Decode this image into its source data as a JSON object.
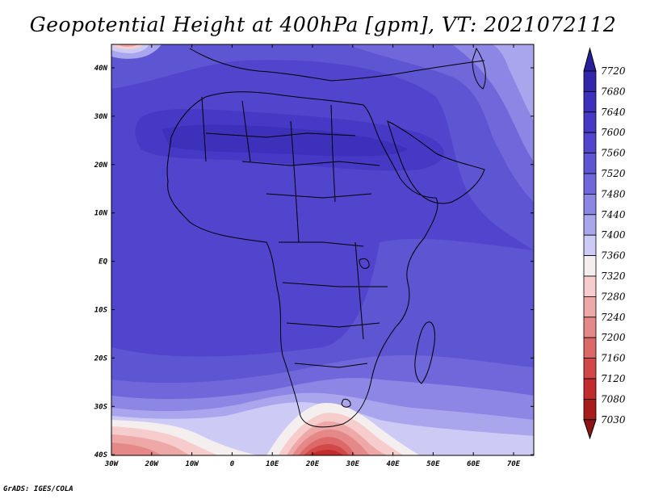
{
  "title": "Geopotential Height at 400hPa [gpm], VT: 2021072112",
  "credit": "GrADS: IGES/COLA",
  "lat_labels": [
    "40N",
    "30N",
    "20N",
    "10N",
    "EQ",
    "10S",
    "20S",
    "30S",
    "40S"
  ],
  "lon_labels": [
    "30W",
    "20W",
    "10W",
    "0",
    "10E",
    "20E",
    "30E",
    "40E",
    "50E",
    "60E",
    "70E"
  ],
  "colorbar": {
    "levels": [
      "7720",
      "7680",
      "7640",
      "7600",
      "7560",
      "7520",
      "7480",
      "7440",
      "7400",
      "7360",
      "7320",
      "7280",
      "7240",
      "7200",
      "7160",
      "7120",
      "7080",
      "7030"
    ],
    "colors": [
      "#2a1f9a",
      "#3326ab",
      "#3d31bc",
      "#4539c6",
      "#5045cc",
      "#5e55d2",
      "#7068da",
      "#8c86e4",
      "#aaa6ee",
      "#cdcbf6",
      "#f5eeee",
      "#f6cccc",
      "#eea8a8",
      "#e48888",
      "#dc6868",
      "#d24848",
      "#c22c2c",
      "#a81c1c",
      "#8c1414"
    ]
  },
  "chart_data": {
    "type": "heatmap",
    "field": "Geopotential Height at 400hPa",
    "units": "gpm",
    "valid_time": "2021072112",
    "lon_range": [
      -30,
      75
    ],
    "lat_range": [
      -40,
      45
    ],
    "contour_levels": [
      7030,
      7080,
      7120,
      7160,
      7200,
      7240,
      7280,
      7320,
      7360,
      7400,
      7440,
      7480,
      7520,
      7560,
      7600,
      7640,
      7680,
      7720
    ],
    "features": [
      {
        "desc": "central Africa and Sahara",
        "approx_value": 7600
      },
      {
        "desc": "Sahara high core",
        "approx_value": 7640
      },
      {
        "desc": "low south of South Africa",
        "approx_value": 7080
      },
      {
        "desc": "low in southwest Atlantic",
        "approx_value": 7280
      },
      {
        "desc": "northwest corner (Iberia)",
        "approx_value": 7360
      }
    ]
  }
}
